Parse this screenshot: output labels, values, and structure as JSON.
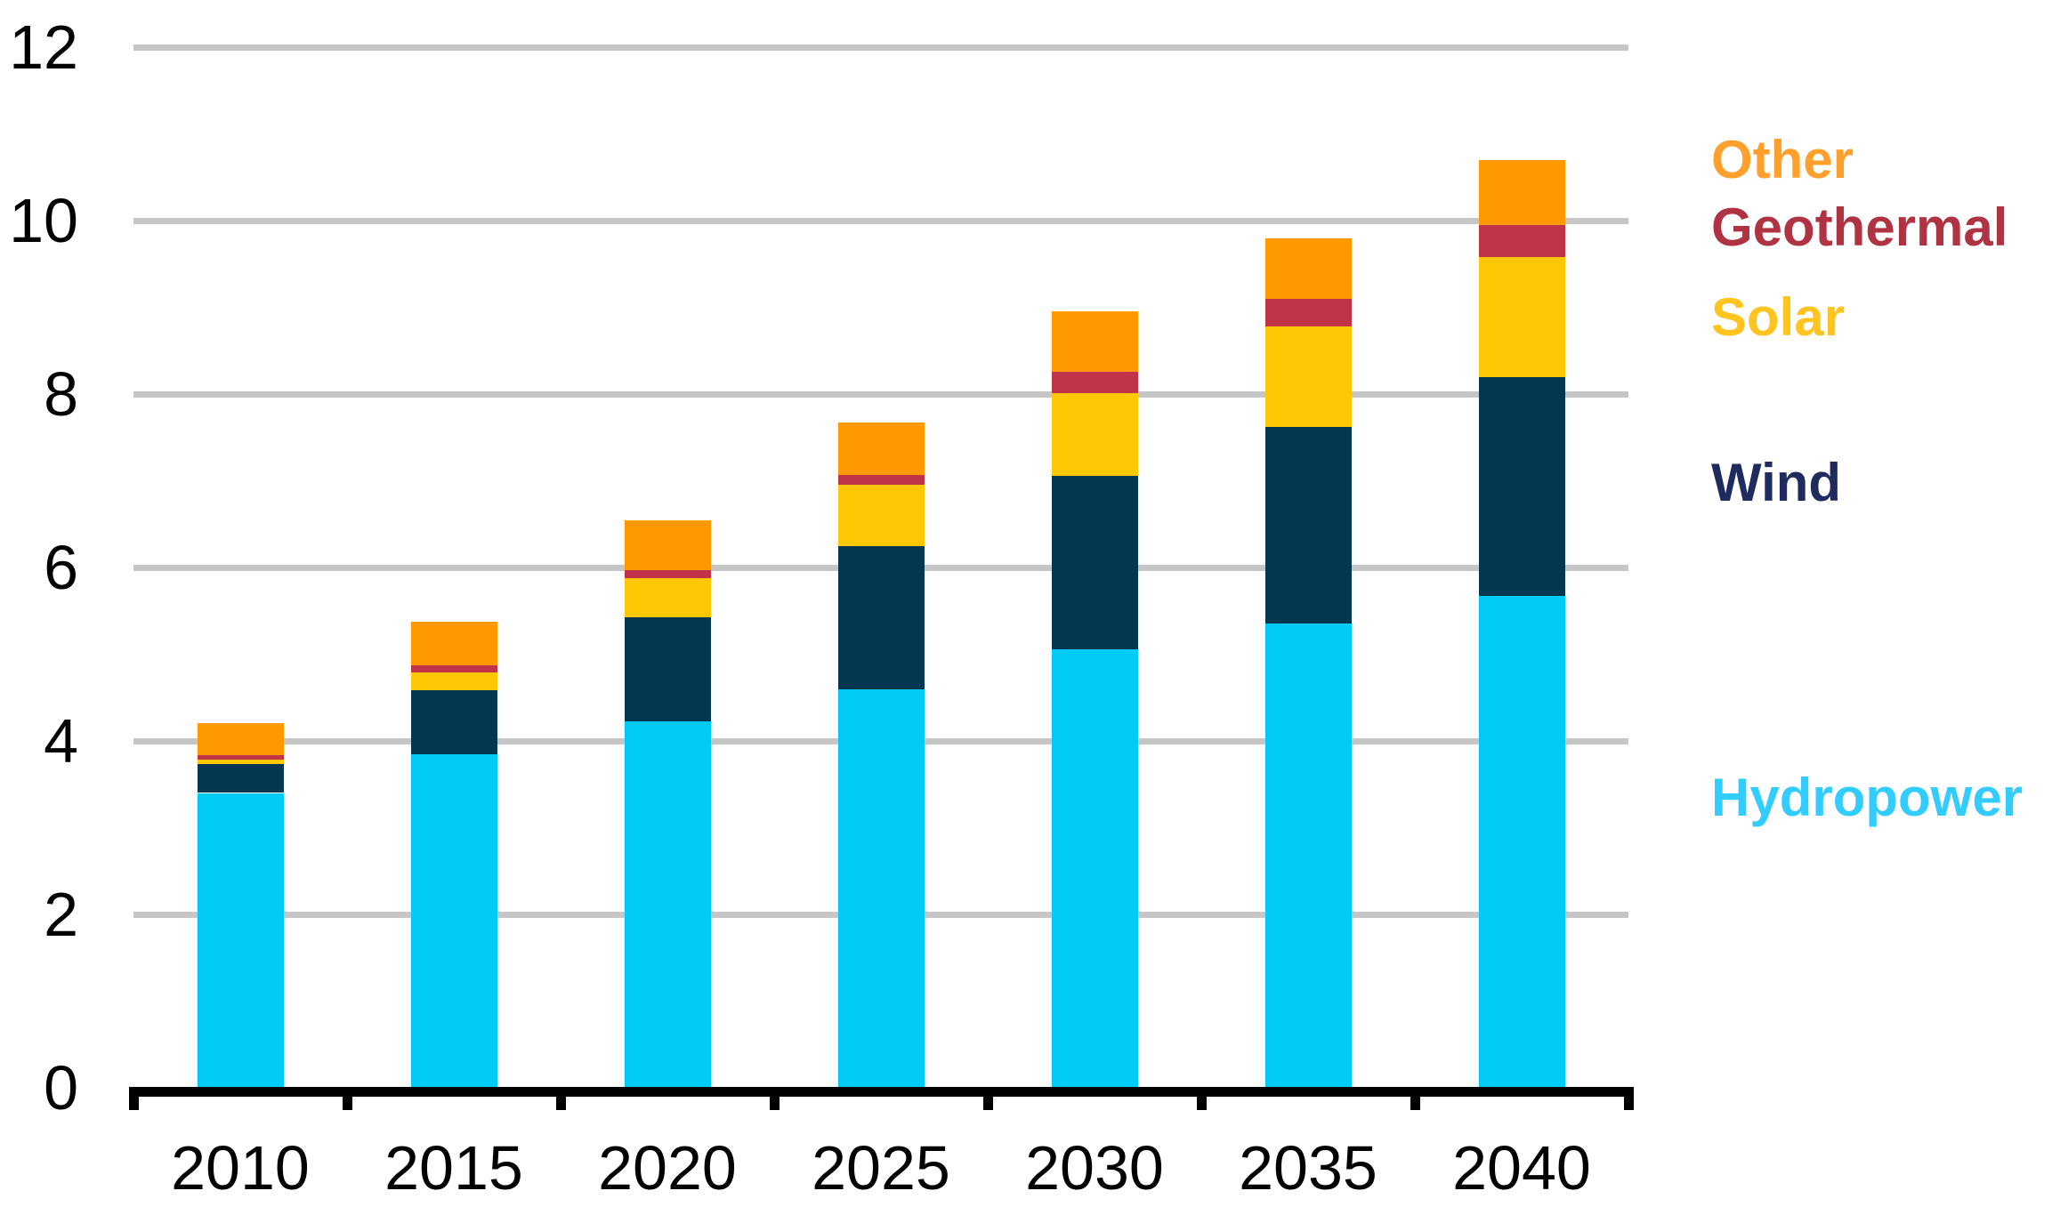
{
  "chart_data": {
    "type": "bar",
    "stacked": true,
    "title": "",
    "categories": [
      "2010",
      "2015",
      "2020",
      "2025",
      "2030",
      "2035",
      "2040"
    ],
    "series": [
      {
        "name": "Hydropower",
        "color": "#00CBF6",
        "values": [
          3.4,
          3.85,
          4.23,
          4.59,
          5.06,
          5.35,
          5.67
        ]
      },
      {
        "name": "Wind",
        "color": "#053750",
        "values": [
          0.33,
          0.73,
          1.2,
          1.66,
          2.0,
          2.27,
          2.52
        ]
      },
      {
        "name": "Solar",
        "color": "#FFC805",
        "values": [
          0.05,
          0.21,
          0.45,
          0.7,
          0.95,
          1.16,
          1.39
        ]
      },
      {
        "name": "Geothermal",
        "color": "#C03349",
        "values": [
          0.06,
          0.08,
          0.09,
          0.12,
          0.25,
          0.32,
          0.37
        ]
      },
      {
        "name": "Other",
        "color": "#FF9900",
        "values": [
          0.37,
          0.5,
          0.57,
          0.6,
          0.69,
          0.7,
          0.75
        ]
      }
    ],
    "totals": [
      4.21,
      5.37,
      6.54,
      7.67,
      8.95,
      9.8,
      10.7
    ],
    "xlabel": "",
    "ylabel": "",
    "ylim": [
      0,
      12
    ],
    "yticks": [
      0,
      2,
      4,
      6,
      8,
      10,
      12
    ],
    "grid": true,
    "gridline_color": "#C6C6C6",
    "axis_color": "#000000",
    "legend_position": "right"
  },
  "legend": {
    "items": [
      {
        "label": "Other",
        "color": "#FFA02C"
      },
      {
        "label": "Geothermal",
        "color": "#B03344"
      },
      {
        "label": "Solar",
        "color": "#FFC41F"
      },
      {
        "label": "Wind",
        "color": "#1F2A5E"
      },
      {
        "label": "Hydropower",
        "color": "#33CCFF"
      }
    ]
  }
}
